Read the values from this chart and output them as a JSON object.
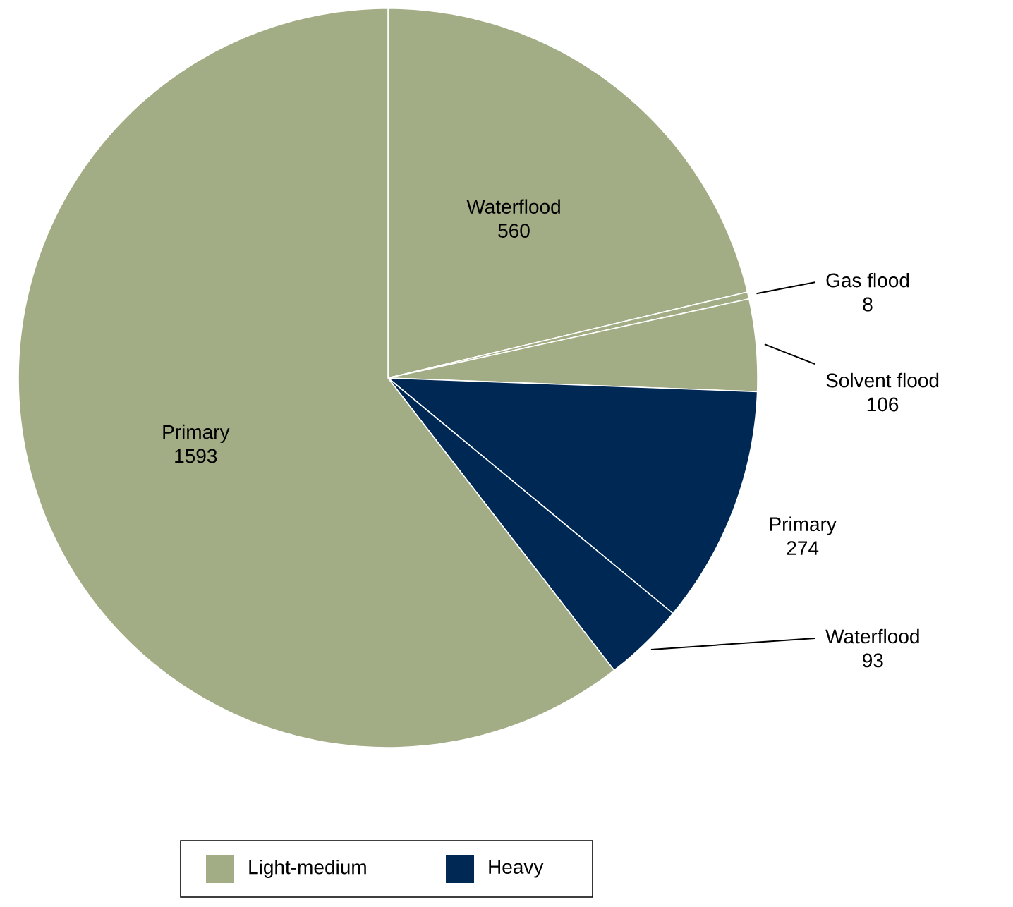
{
  "chart_data": {
    "type": "pie",
    "categories": [
      "Waterflood",
      "Gas flood",
      "Solvent flood",
      "Primary",
      "Waterflood",
      "Primary"
    ],
    "values": [
      560,
      8,
      106,
      274,
      93,
      1593
    ],
    "colors": [
      "#a3ad85",
      "#a3ad85",
      "#a3ad85",
      "#002855",
      "#002855",
      "#a3ad85"
    ],
    "annotations": [
      "Light-medium",
      "Heavy"
    ],
    "data_labels": true
  }
}
